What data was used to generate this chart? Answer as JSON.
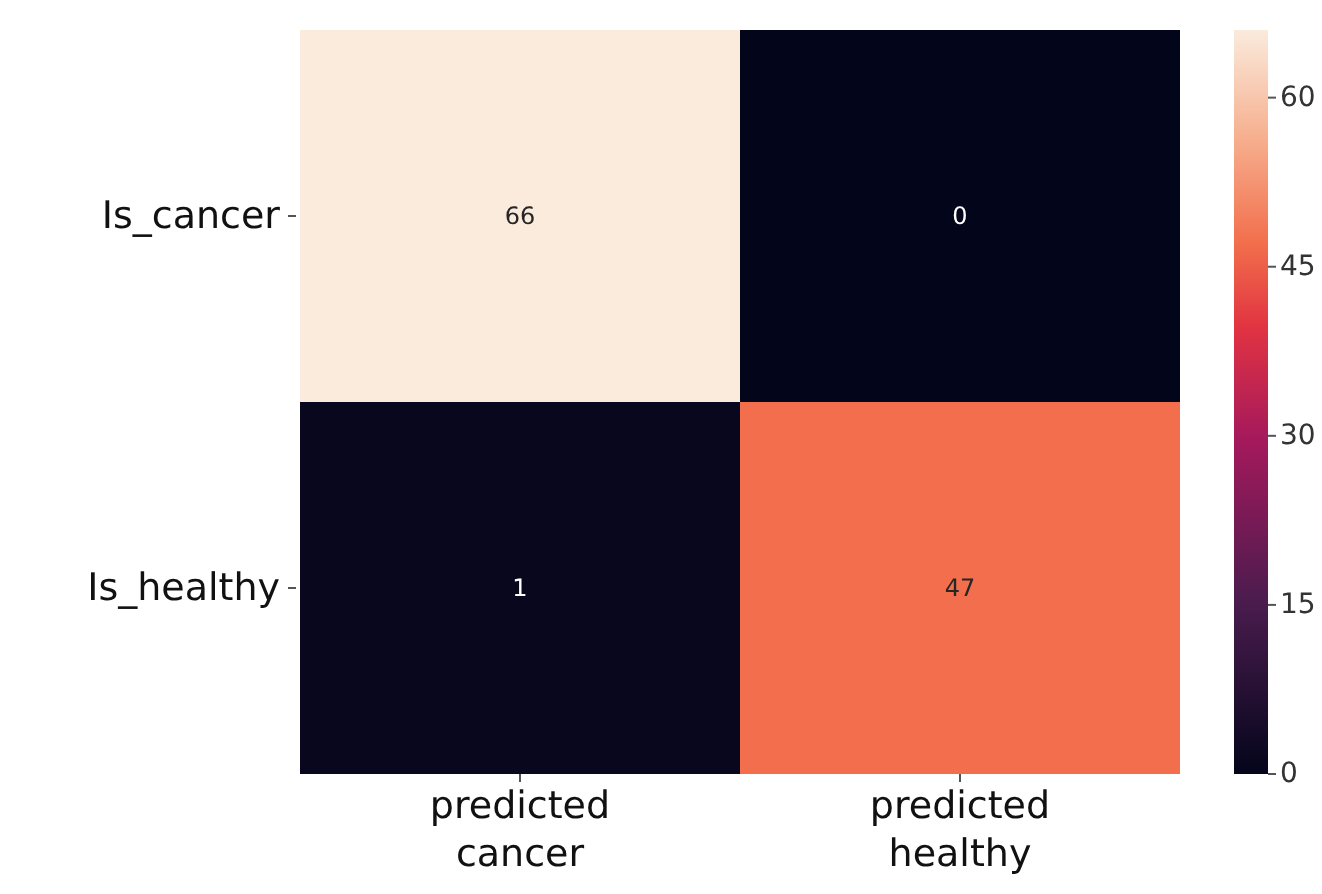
{
  "chart_data": {
    "type": "heatmap",
    "categories": [
      "predicted cancer",
      "predicted healthy"
    ],
    "y_categories": [
      "Is_cancer",
      "Is_healthy"
    ],
    "cells": [
      [
        66,
        0
      ],
      [
        1,
        47
      ]
    ],
    "clim": [
      0,
      66
    ],
    "cticks": [
      0,
      15,
      30,
      45,
      60
    ],
    "data_labels": true
  }
}
